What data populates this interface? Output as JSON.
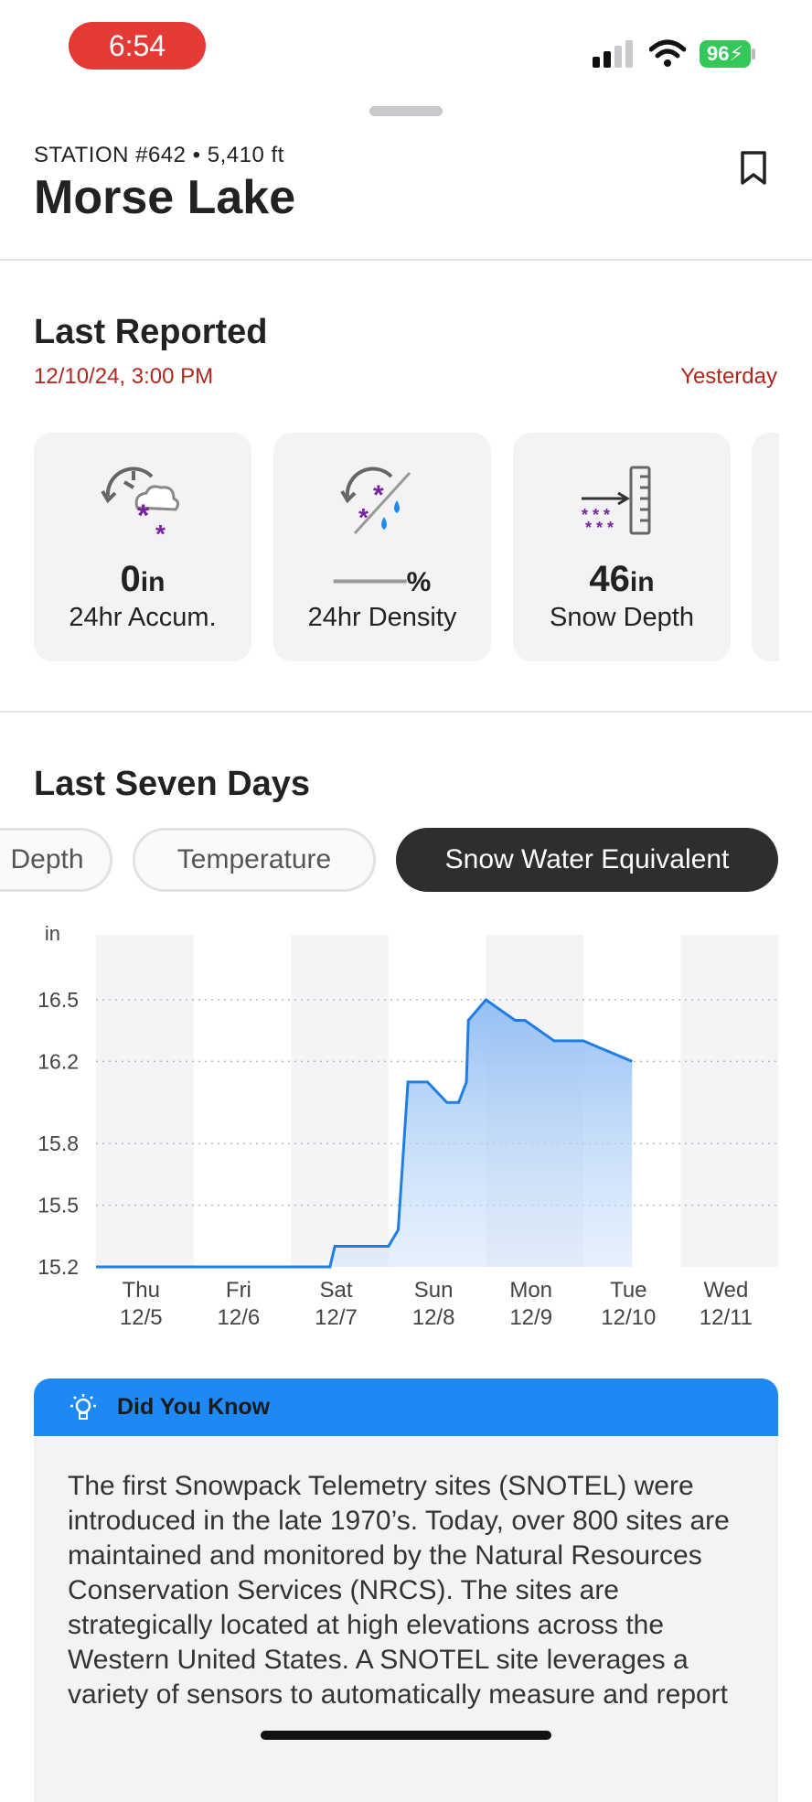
{
  "status_bar": {
    "time": "6:54",
    "battery": "96"
  },
  "station": {
    "subtitle": "STATION #642 • 5,410 ft",
    "name": "Morse Lake"
  },
  "last_reported": {
    "heading": "Last Reported",
    "datetime": "12/10/24, 3:00 PM",
    "relative": "Yesterday",
    "cards": [
      {
        "value": "0",
        "unit": "in",
        "label": "24hr Accum.",
        "icon": "snow-accumulation-icon"
      },
      {
        "value": "——",
        "unit": "%",
        "label": "24hr Density",
        "icon": "snow-density-icon"
      },
      {
        "value": "46",
        "unit": "in",
        "label": "Snow Depth",
        "icon": "snow-depth-icon"
      }
    ]
  },
  "seven_days": {
    "heading": "Last Seven Days",
    "tabs": [
      "Depth",
      "Temperature",
      "Snow Water Equivalent"
    ],
    "selected_tab": "Snow Water Equivalent"
  },
  "chart_data": {
    "type": "area",
    "ylabel": "in",
    "yticks": [
      16.5,
      16.2,
      15.8,
      15.5,
      15.2
    ],
    "ylim": [
      15.2,
      16.5
    ],
    "categories": [
      {
        "day": "Thu",
        "date": "12/5"
      },
      {
        "day": "Fri",
        "date": "12/6"
      },
      {
        "day": "Sat",
        "date": "12/7"
      },
      {
        "day": "Sun",
        "date": "12/8"
      },
      {
        "day": "Mon",
        "date": "12/9"
      },
      {
        "day": "Tue",
        "date": "12/10"
      },
      {
        "day": "Wed",
        "date": "12/11"
      }
    ],
    "x": [
      0,
      1,
      2,
      2.4,
      2.45,
      3.0,
      3.1,
      3.2,
      3.4,
      3.6,
      3.62,
      3.72,
      3.8,
      3.82,
      4.0,
      4.3,
      4.4,
      4.7,
      5.0,
      5.5
    ],
    "values": [
      15.2,
      15.2,
      15.2,
      15.2,
      15.3,
      15.3,
      15.38,
      16.1,
      16.1,
      16.0,
      16.0,
      16.0,
      16.1,
      16.4,
      16.5,
      16.4,
      16.4,
      16.3,
      16.3,
      16.2
    ],
    "line_color": "#1e7ee6",
    "fill_color": "#9fc6f5",
    "grid": true
  },
  "did_you_know": {
    "title": "Did You Know",
    "text": "The first Snowpack Telemetry sites (SNOTEL) were introduced in the late 1970’s. Today, over 800 sites are maintained and monitored by the Natural Resources Conservation Services (NRCS). The sites are strategically located at high elevations across the Western United States. A SNOTEL site leverages a variety of sensors to automatically measure and report"
  }
}
